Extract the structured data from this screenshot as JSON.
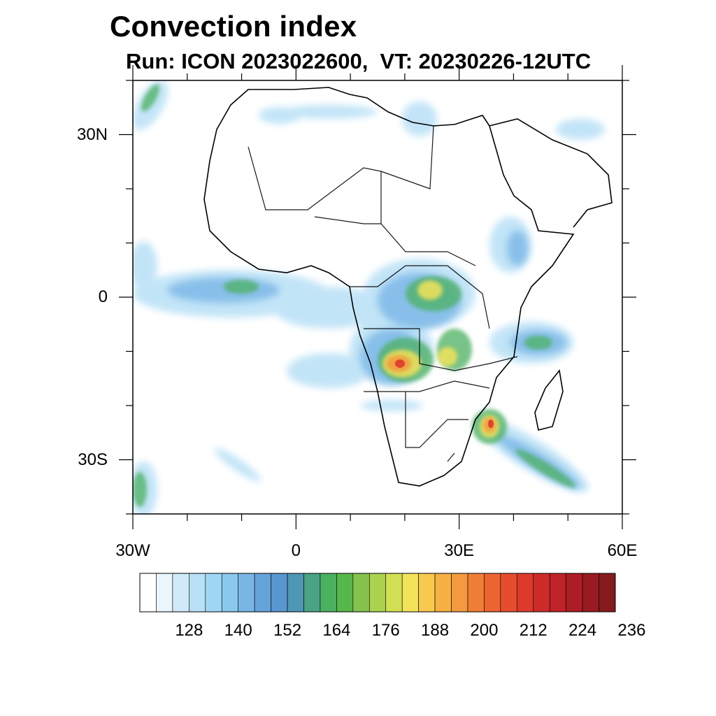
{
  "title": "Convection index",
  "subtitle": "Run: ICON 2023022600,  VT: 20230226-12UTC",
  "map": {
    "region": "Africa",
    "lon_range": [
      -30,
      60
    ],
    "lat_range": [
      -40,
      40
    ],
    "x_ticks": [
      {
        "label": "30W",
        "lon": -30
      },
      {
        "label": "0",
        "lon": 0
      },
      {
        "label": "30E",
        "lon": 30
      },
      {
        "label": "60E",
        "lon": 60
      }
    ],
    "y_ticks": [
      {
        "label": "30N",
        "lat": 30
      },
      {
        "label": "0",
        "lat": 0
      },
      {
        "label": "30S",
        "lat": -30
      }
    ],
    "max_convection_regions": [
      "Angola / Zambia",
      "Mozambique channel (Southeast Africa)",
      "Central Africa (DRC)"
    ]
  },
  "colorbar": {
    "labels": [
      "128",
      "140",
      "152",
      "164",
      "176",
      "188",
      "200",
      "212",
      "224",
      "236"
    ],
    "colors": [
      "#ffffff",
      "#eaf6fc",
      "#cfeaf8",
      "#b8e0f6",
      "#9fd6f4",
      "#8bc8ee",
      "#79b6e6",
      "#67a3db",
      "#5896d0",
      "#4e97b5",
      "#49a384",
      "#4bb060",
      "#56b84a",
      "#86c24d",
      "#abd14f",
      "#d3df52",
      "#f3e35a",
      "#f7c94f",
      "#f7b043",
      "#f49a3e",
      "#f07e36",
      "#ec6531",
      "#e54d2d",
      "#dd3a2b",
      "#cf2a2a",
      "#bf2228",
      "#ac1e25",
      "#991b21",
      "#861a1d"
    ]
  }
}
